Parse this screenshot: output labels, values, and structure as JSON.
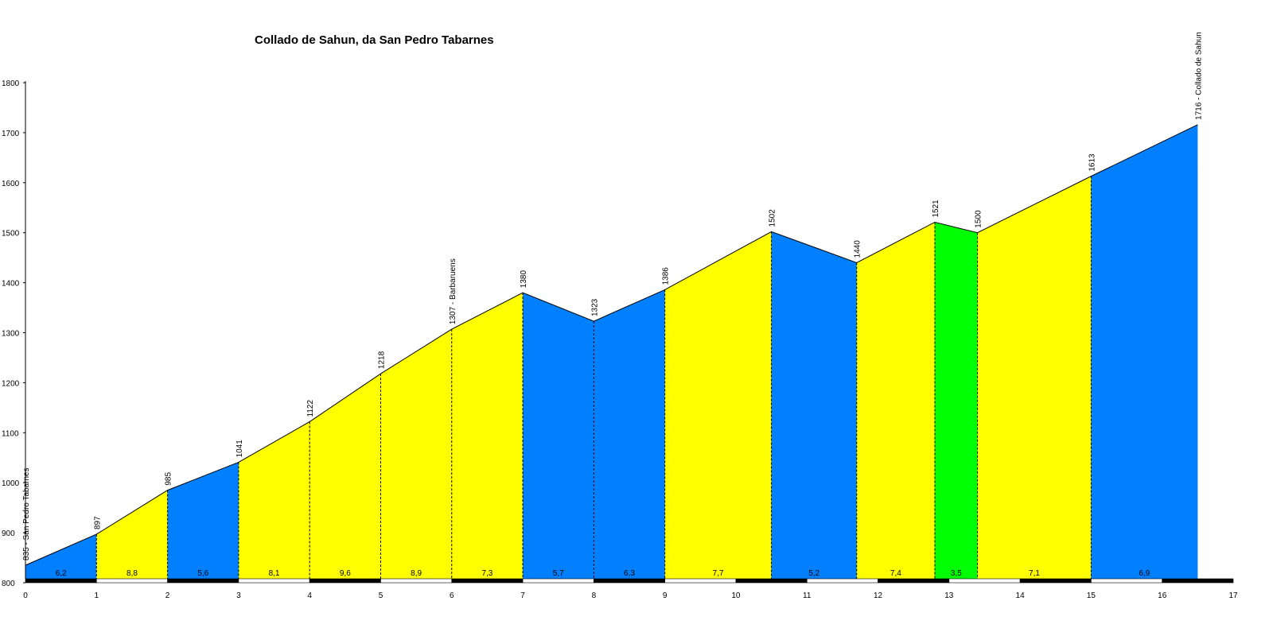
{
  "chart_data": {
    "type": "area",
    "title": "Collado de Sahun, da San Pedro Tabarnes",
    "xlabel": "",
    "ylabel": "",
    "xlim": [
      0,
      17
    ],
    "ylim": [
      800,
      1800
    ],
    "x_ticks": [
      0,
      1,
      2,
      3,
      4,
      5,
      6,
      7,
      8,
      9,
      10,
      11,
      12,
      13,
      14,
      15,
      16,
      17
    ],
    "y_ticks": [
      800,
      900,
      1000,
      1100,
      1200,
      1300,
      1400,
      1500,
      1600,
      1700,
      1800
    ],
    "points": [
      {
        "x": 0,
        "y": 835,
        "label": "835 - San Pedro Tabarnes"
      },
      {
        "x": 1,
        "y": 897,
        "label": "897"
      },
      {
        "x": 2,
        "y": 985,
        "label": "985"
      },
      {
        "x": 3,
        "y": 1041,
        "label": "1041"
      },
      {
        "x": 4,
        "y": 1122,
        "label": "1122"
      },
      {
        "x": 5,
        "y": 1218,
        "label": "1218"
      },
      {
        "x": 6,
        "y": 1307,
        "label": "1307 - Barbaruens"
      },
      {
        "x": 7,
        "y": 1380,
        "label": "1380"
      },
      {
        "x": 8,
        "y": 1323,
        "label": "1323"
      },
      {
        "x": 9,
        "y": 1386,
        "label": "1386"
      },
      {
        "x": 10.5,
        "y": 1502,
        "label": "1502"
      },
      {
        "x": 11.7,
        "y": 1440,
        "label": "1440"
      },
      {
        "x": 12.8,
        "y": 1521,
        "label": "1521"
      },
      {
        "x": 13.4,
        "y": 1500,
        "label": "1500"
      },
      {
        "x": 15,
        "y": 1613,
        "label": "1613"
      },
      {
        "x": 16.5,
        "y": 1716,
        "label": "1716 - Collado de Sahun"
      }
    ],
    "segments": [
      {
        "label": "6,2",
        "color": "#0080ff"
      },
      {
        "label": "8,8",
        "color": "#ffff00"
      },
      {
        "label": "5,6",
        "color": "#0080ff"
      },
      {
        "label": "8,1",
        "color": "#ffff00"
      },
      {
        "label": "9,6",
        "color": "#ffff00"
      },
      {
        "label": "8,9",
        "color": "#ffff00"
      },
      {
        "label": "7,3",
        "color": "#ffff00"
      },
      {
        "label": "5,7",
        "color": "#0080ff"
      },
      {
        "label": "6,3",
        "color": "#0080ff"
      },
      {
        "label": "7,7",
        "color": "#ffff00"
      },
      {
        "label": "5,2",
        "color": "#0080ff"
      },
      {
        "label": "7,4",
        "color": "#ffff00"
      },
      {
        "label": "3,5",
        "color": "#00ff00"
      },
      {
        "label": "7,1",
        "color": "#ffff00"
      },
      {
        "label": "6,9",
        "color": "#0080ff"
      }
    ],
    "grid": false,
    "legend": "none"
  }
}
